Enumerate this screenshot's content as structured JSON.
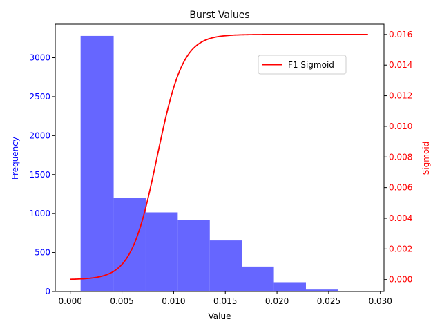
{
  "chart_data": {
    "type": "bar",
    "title": "Burst Values",
    "xlabel": "Value",
    "ylabel": "Frequency",
    "y2label": "Sigmoid",
    "xlim": [
      -0.00145,
      0.03035
    ],
    "ylim": [
      0,
      3430
    ],
    "y2lim": [
      -0.00078,
      0.01667
    ],
    "x_ticks": [
      0.0,
      0.005,
      0.01,
      0.015,
      0.02,
      0.025,
      0.03
    ],
    "x_tick_labels": [
      "0.000",
      "0.005",
      "0.010",
      "0.015",
      "0.020",
      "0.025",
      "0.030"
    ],
    "y_ticks": [
      0,
      500,
      1000,
      1500,
      2000,
      2500,
      3000
    ],
    "y_tick_labels": [
      "0",
      "500",
      "1000",
      "1500",
      "2000",
      "2500",
      "3000"
    ],
    "y2_ticks": [
      0.0,
      0.002,
      0.004,
      0.006,
      0.008,
      0.01,
      0.012,
      0.014,
      0.016
    ],
    "y2_tick_labels": [
      "0.000",
      "0.002",
      "0.004",
      "0.006",
      "0.008",
      "0.010",
      "0.012",
      "0.014",
      "0.016"
    ],
    "histogram": {
      "bin_edges": [
        0.001,
        0.0042,
        0.0073,
        0.0104,
        0.0135,
        0.0166,
        0.0197,
        0.0228,
        0.0259
      ],
      "counts": [
        3280,
        1200,
        1015,
        915,
        655,
        320,
        120,
        25
      ],
      "color": "#6666ff"
    },
    "series": [
      {
        "name": "F1 Sigmoid",
        "type": "line",
        "axis": "right",
        "color": "#ff0000",
        "function": "sigmoid",
        "params": {
          "amplitude": 0.016,
          "midpoint": 0.0084,
          "steepness": 800
        },
        "x_range": [
          0.0,
          0.0288
        ]
      }
    ],
    "legend": {
      "position": "top-right",
      "entries": [
        "F1 Sigmoid"
      ]
    },
    "colors": {
      "left_axis": "#0000ff",
      "right_axis": "#ff0000",
      "frame": "#000000"
    },
    "grid": false
  }
}
